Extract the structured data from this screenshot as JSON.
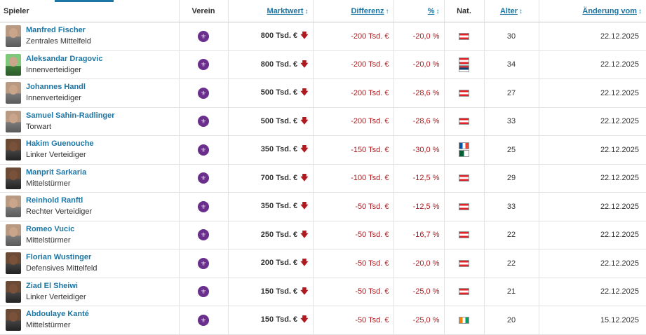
{
  "header": {
    "player": "Spieler",
    "club": "Verein",
    "market_value": "Marktwert",
    "difference": "Differenz",
    "percent": "%",
    "nationality": "Nat.",
    "age": "Alter",
    "change_date": "Änderung vom",
    "sort_icon_both": "↕",
    "sort_icon_up": "↑"
  },
  "icons": {
    "down": "🡇",
    "club": "⚜"
  },
  "colors": {
    "link": "#1d75a3",
    "negative": "#b0191e",
    "club": "#6a2e8c"
  },
  "rows": [
    {
      "name": "Manfred Fischer",
      "position": "Zentrales Mittelfeld",
      "value": "800 Tsd. €",
      "diff": "-200 Tsd. €",
      "pct": "-20,0 %",
      "age": "30",
      "date": "22.12.2025",
      "flags": [
        "at"
      ]
    },
    {
      "name": "Aleksandar Dragovic",
      "position": "Innenverteidiger",
      "value": "800 Tsd. €",
      "diff": "-200 Tsd. €",
      "pct": "-20,0 %",
      "age": "34",
      "date": "22.12.2025",
      "flags": [
        "at",
        "rs"
      ]
    },
    {
      "name": "Johannes Handl",
      "position": "Innenverteidiger",
      "value": "500 Tsd. €",
      "diff": "-200 Tsd. €",
      "pct": "-28,6 %",
      "age": "27",
      "date": "22.12.2025",
      "flags": [
        "at"
      ]
    },
    {
      "name": "Samuel Sahin-Radlinger",
      "position": "Torwart",
      "value": "500 Tsd. €",
      "diff": "-200 Tsd. €",
      "pct": "-28,6 %",
      "age": "33",
      "date": "22.12.2025",
      "flags": [
        "at"
      ]
    },
    {
      "name": "Hakim Guenouche",
      "position": "Linker Verteidiger",
      "value": "350 Tsd. €",
      "diff": "-150 Tsd. €",
      "pct": "-30,0 %",
      "age": "25",
      "date": "22.12.2025",
      "flags": [
        "fr",
        "dz"
      ]
    },
    {
      "name": "Manprit Sarkaria",
      "position": "Mittelstürmer",
      "value": "700 Tsd. €",
      "diff": "-100 Tsd. €",
      "pct": "-12,5 %",
      "age": "29",
      "date": "22.12.2025",
      "flags": [
        "at"
      ]
    },
    {
      "name": "Reinhold Ranftl",
      "position": "Rechter Verteidiger",
      "value": "350 Tsd. €",
      "diff": "-50 Tsd. €",
      "pct": "-12,5 %",
      "age": "33",
      "date": "22.12.2025",
      "flags": [
        "at"
      ]
    },
    {
      "name": "Romeo Vucic",
      "position": "Mittelstürmer",
      "value": "250 Tsd. €",
      "diff": "-50 Tsd. €",
      "pct": "-16,7 %",
      "age": "22",
      "date": "22.12.2025",
      "flags": [
        "at"
      ]
    },
    {
      "name": "Florian Wustinger",
      "position": "Defensives Mittelfeld",
      "value": "200 Tsd. €",
      "diff": "-50 Tsd. €",
      "pct": "-20,0 %",
      "age": "22",
      "date": "22.12.2025",
      "flags": [
        "at"
      ]
    },
    {
      "name": "Ziad El Sheiwi",
      "position": "Linker Verteidiger",
      "value": "150 Tsd. €",
      "diff": "-50 Tsd. €",
      "pct": "-25,0 %",
      "age": "21",
      "date": "22.12.2025",
      "flags": [
        "at"
      ]
    },
    {
      "name": "Abdoulaye Kanté",
      "position": "Mittelstürmer",
      "value": "150 Tsd. €",
      "diff": "-50 Tsd. €",
      "pct": "-25,0 %",
      "age": "20",
      "date": "15.12.2025",
      "flags": [
        "ci"
      ]
    }
  ]
}
